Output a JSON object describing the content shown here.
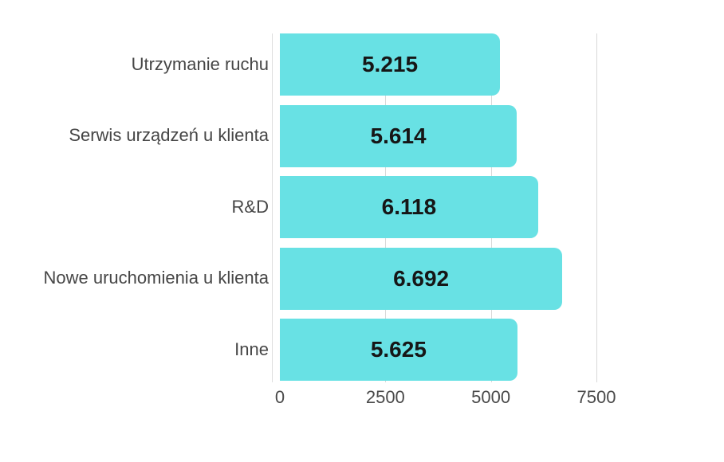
{
  "chart_data": {
    "type": "bar",
    "orientation": "horizontal",
    "title": "",
    "xlabel": "",
    "ylabel": "",
    "categories": [
      "Utrzymanie ruchu",
      "Serwis urządzeń u klienta",
      "R&D",
      "Nowe uruchomienia u klienta",
      "Inne"
    ],
    "values": [
      5215,
      5614,
      6118,
      6692,
      5625
    ],
    "value_labels": [
      "5.215",
      "5.614",
      "6.118",
      "6.692",
      "5.625"
    ],
    "x_ticks": [
      0,
      2500,
      5000,
      7500
    ],
    "x_tick_labels": [
      "0",
      "2500",
      "5000",
      "7500"
    ],
    "xlim": [
      0,
      7500
    ],
    "grid": true,
    "legend": "none",
    "colors": {
      "bar_fill": "#68e1e4",
      "value_label": "#161616",
      "category_label": "#464646",
      "tick_label": "#4a4a4a",
      "gridline": "#d9d9d9",
      "axis_line": "#dedede",
      "background": "#ffffff"
    }
  }
}
